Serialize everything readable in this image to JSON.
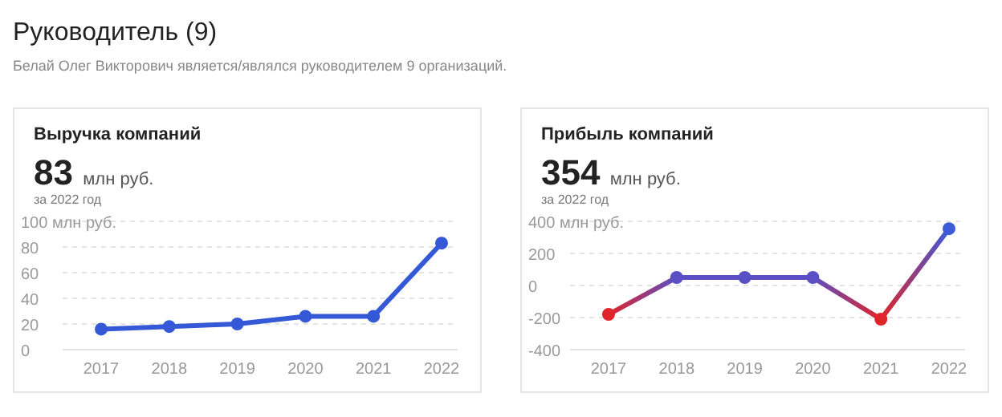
{
  "chart_data": [
    {
      "type": "line",
      "title": "Выручка компаний",
      "annotations": [
        "Руководитель (9)",
        "Белай Олег Викторович является/являлся руководителем 9 организаций.",
        "83 млн руб.",
        "за 2022 год"
      ],
      "categories": [
        "2017",
        "2018",
        "2019",
        "2020",
        "2021",
        "2022"
      ],
      "series": [
        {
          "color": "#3559d6",
          "values": [
            16,
            18,
            20,
            26,
            26,
            83
          ]
        }
      ],
      "ylim": [
        0,
        100
      ],
      "yticks": [
        0,
        20,
        40,
        60,
        80,
        {
          "value": 100,
          "label": "100 млн руб."
        }
      ],
      "grid": "y",
      "marker": "circle",
      "line_style": "solid"
    },
    {
      "type": "line",
      "title": "Прибыль компаний",
      "annotations": [
        "354 млн руб.",
        "за 2022 год"
      ],
      "categories": [
        "2017",
        "2018",
        "2019",
        "2020",
        "2021",
        "2022"
      ],
      "series": [
        {
          "colors": [
            "#e0242a",
            "#5a4fc4",
            "#5a4fc4",
            "#5a4fc4",
            "#e0242a",
            "#3d5bd9"
          ],
          "values": [
            -180,
            50,
            50,
            50,
            -210,
            354
          ]
        }
      ],
      "ylim": [
        -400,
        400
      ],
      "yticks": [
        -400,
        -200,
        0,
        200,
        {
          "value": 400,
          "label": "400 млн руб."
        }
      ],
      "grid": "y",
      "marker": "circle",
      "line_style": "solid"
    }
  ]
}
